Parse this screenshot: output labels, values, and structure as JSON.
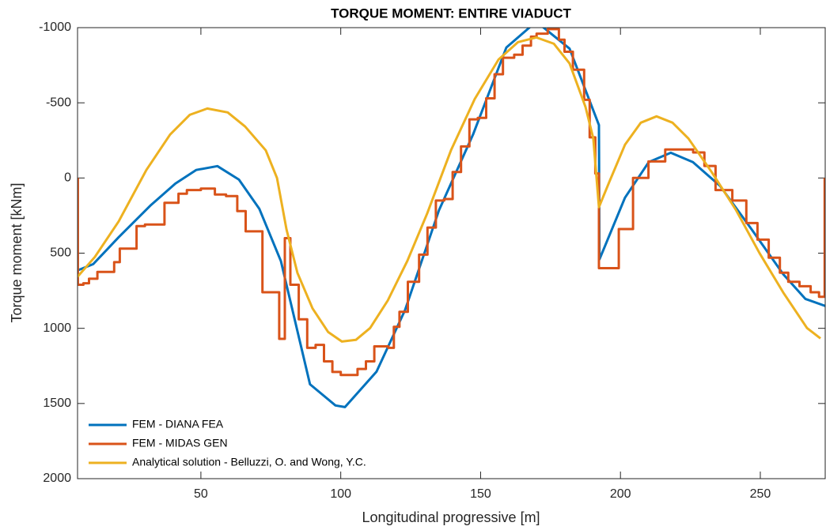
{
  "chart_data": {
    "type": "line",
    "title": "TORQUE MOMENT: ENTIRE VIADUCT",
    "xlabel": "Longitudinal progressive [m]",
    "ylabel": "Torque moment [kNm]",
    "xlim": [
      5.9,
      273.2
    ],
    "xticks": [
      50,
      100,
      150,
      200,
      250
    ],
    "ylim": [
      -1000,
      2000
    ],
    "yticks": [
      -1000,
      -500,
      0,
      500,
      1000,
      1500,
      2000
    ],
    "y_reversed": true,
    "legend": "lower left",
    "series": [
      {
        "name": "FEM - DIANA FEA",
        "color": "#0072bd",
        "x": [
          5.9,
          11.5,
          20.6,
          31.9,
          40.9,
          48.3,
          55.9,
          63.6,
          70.9,
          78.6,
          89,
          98.1,
          101.5,
          112.8,
          123,
          135.1,
          147.3,
          159.2,
          169.9,
          181.8,
          192.3,
          192.5,
          201.6,
          210.1,
          218,
          225.9,
          235.6,
          246.9,
          258.2,
          266.1,
          273.2
        ],
        "values": [
          615,
          573,
          394,
          184,
          37,
          -53,
          -79,
          11,
          205,
          552,
          1372,
          1513,
          1524,
          1288,
          878,
          215,
          -289,
          -868,
          -1040,
          -860,
          -352,
          541,
          131,
          -105,
          -168,
          -105,
          53,
          342,
          641,
          804,
          851
        ]
      },
      {
        "name": "FEM - MIDAS GEN",
        "color": "#d95319",
        "x": [
          6,
          6,
          8,
          8,
          10,
          10,
          13,
          13,
          19,
          19,
          21,
          21,
          27,
          27,
          30,
          30,
          37,
          37,
          42,
          42,
          45,
          45,
          50,
          50,
          55,
          55,
          59,
          59,
          63,
          63,
          66,
          66,
          72,
          72,
          78,
          78,
          80,
          80,
          82,
          82,
          85,
          85,
          88,
          88,
          91,
          91,
          94,
          94,
          97,
          97,
          100,
          100,
          106,
          106,
          109,
          109,
          112,
          112,
          117,
          117,
          119,
          119,
          121,
          121,
          124,
          124,
          128,
          128,
          131,
          131,
          134,
          134,
          137,
          137,
          140,
          140,
          143,
          143,
          146,
          146,
          149,
          149,
          152,
          152,
          155,
          155,
          158,
          158,
          162,
          162,
          165,
          165,
          168,
          168,
          170,
          170,
          174,
          174,
          178,
          178,
          180,
          180,
          183,
          183,
          187,
          187,
          189,
          189,
          191,
          191,
          192.3,
          192.3,
          199.4,
          199.4,
          204.5,
          204.5,
          210,
          210,
          216,
          216,
          226,
          226,
          230,
          230,
          234,
          234,
          240,
          240,
          245,
          245,
          249,
          249,
          253,
          253,
          257,
          257,
          260,
          260,
          264,
          264,
          268,
          268,
          271,
          271,
          273,
          273
        ],
        "values": [
          0,
          710,
          710,
          700,
          700,
          670,
          670,
          625,
          625,
          560,
          560,
          470,
          470,
          320,
          320,
          310,
          310,
          165,
          165,
          105,
          105,
          80,
          80,
          70,
          70,
          110,
          110,
          120,
          120,
          220,
          220,
          355,
          355,
          760,
          760,
          1070,
          1070,
          400,
          400,
          710,
          710,
          940,
          940,
          1130,
          1130,
          1110,
          1110,
          1220,
          1220,
          1290,
          1290,
          1310,
          1310,
          1270,
          1270,
          1220,
          1220,
          1120,
          1120,
          1130,
          1130,
          990,
          990,
          890,
          890,
          690,
          690,
          510,
          510,
          330,
          330,
          150,
          150,
          140,
          140,
          -40,
          -40,
          -210,
          -210,
          -390,
          -390,
          -400,
          -400,
          -530,
          -530,
          -690,
          -690,
          -800,
          -800,
          -820,
          -820,
          -880,
          -880,
          -940,
          -940,
          -960,
          -960,
          -990,
          -990,
          -920,
          -920,
          -840,
          -840,
          -720,
          -720,
          -520,
          -520,
          -270,
          -270,
          -30,
          -30,
          600,
          600,
          340,
          340,
          0,
          0,
          -110,
          -110,
          -190,
          -190,
          -170,
          -170,
          -80,
          -80,
          80,
          80,
          150,
          150,
          300,
          300,
          410,
          410,
          530,
          530,
          630,
          630,
          690,
          690,
          720,
          720,
          760,
          760,
          790,
          790,
          0
        ]
      },
      {
        "name": "Analytical solution - Belluzzi, O. and Wong, Y.C.",
        "color": "#edb120",
        "x": [
          5.9,
          12.1,
          20.6,
          30.5,
          39,
          46,
          52.3,
          59.6,
          65.8,
          73.2,
          77.2,
          80.6,
          84.5,
          89.9,
          95.5,
          100.4,
          105.4,
          110.5,
          116.8,
          123.8,
          130.9,
          139.4,
          147.9,
          156.4,
          163.4,
          169.9,
          176.2,
          181.8,
          187.5,
          190.3,
          192.3,
          196,
          201.6,
          207.3,
          212.9,
          218.6,
          224.3,
          232.7,
          241.2,
          249.7,
          258.2,
          266.7,
          271.5
        ],
        "values": [
          657,
          525,
          289,
          -53,
          -289,
          -420,
          -462,
          -436,
          -342,
          -184,
          0,
          342,
          631,
          867,
          1025,
          1088,
          1077,
          998,
          815,
          552,
          236,
          -184,
          -525,
          -788,
          -904,
          -935,
          -893,
          -762,
          -473,
          -263,
          194,
          26,
          -221,
          -368,
          -410,
          -368,
          -263,
          -37,
          210,
          499,
          762,
          998,
          1067
        ]
      }
    ]
  }
}
